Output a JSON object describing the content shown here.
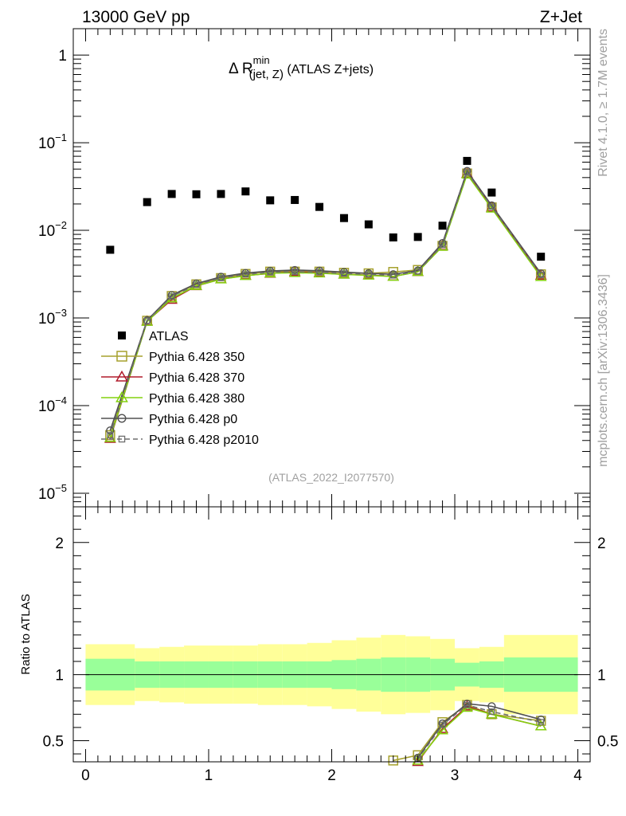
{
  "header": {
    "left": "13000 GeV pp",
    "right": "Z+Jet"
  },
  "side_labels": {
    "rivet": "Rivet 4.1.0, ≥ 1.7M events",
    "mcplots": "mcplots.cern.ch [arXiv:1306.3436]"
  },
  "chart_data": {
    "type": "scatter",
    "title": "Δ R",
    "title_sup": "min",
    "title_sub": "(jet, Z)",
    "title_suffix": " (ATLAS Z+jets)",
    "analysis_id": "(ATLAS_2022_I2077570)",
    "xlim": [
      -0.1,
      4.1
    ],
    "x_ticks": [
      "0",
      "1",
      "2",
      "3",
      "4"
    ],
    "main": {
      "yscale": "log",
      "ylim": [
        7e-06,
        2.0
      ],
      "y_ticks": [
        {
          "base": "10",
          "exp": "−5",
          "value": 1e-05
        },
        {
          "base": "10",
          "exp": "−4",
          "value": 0.0001
        },
        {
          "base": "10",
          "exp": "−3",
          "value": 0.001
        },
        {
          "base": "10",
          "exp": "−2",
          "value": 0.01
        },
        {
          "base": "10",
          "exp": "−1",
          "value": 0.1
        },
        {
          "base": "1",
          "exp": "",
          "value": 1
        }
      ]
    },
    "ratio": {
      "ylabel": "Ratio to ATLAS",
      "ylim": [
        0.34,
        2.27
      ],
      "y_ticks": [
        "0.5",
        "1",
        "2"
      ],
      "y_tick_values": [
        0.5,
        1,
        2
      ]
    },
    "x": [
      0.2,
      0.5,
      0.7,
      0.9,
      1.1,
      1.3,
      1.5,
      1.7,
      1.9,
      2.1,
      2.3,
      2.5,
      2.7,
      2.9,
      3.1,
      3.3,
      3.7
    ],
    "atlas": [
      0.006,
      0.021,
      0.026,
      0.0258,
      0.026,
      0.0278,
      0.022,
      0.0222,
      0.0185,
      0.0138,
      0.0117,
      0.0083,
      0.0084,
      0.0113,
      0.062,
      0.027,
      0.005
    ],
    "band_edges": [
      0,
      0.4,
      0.6,
      0.8,
      1.0,
      1.2,
      1.4,
      1.6,
      1.8,
      2.0,
      2.2,
      2.4,
      2.6,
      2.8,
      3.0,
      3.2,
      3.4,
      4.0
    ],
    "band_inner": [
      0.12,
      0.1,
      0.1,
      0.1,
      0.1,
      0.1,
      0.1,
      0.1,
      0.1,
      0.11,
      0.12,
      0.13,
      0.13,
      0.12,
      0.09,
      0.1,
      0.13
    ],
    "band_outer": [
      0.11,
      0.1,
      0.11,
      0.12,
      0.12,
      0.12,
      0.13,
      0.13,
      0.14,
      0.15,
      0.16,
      0.17,
      0.16,
      0.15,
      0.11,
      0.11,
      0.17
    ],
    "series": [
      {
        "name": "Pythia 6.428 350",
        "color": "#a6a12d",
        "marker": "square-open",
        "dash": "",
        "values": [
          4.6e-05,
          0.00093,
          0.00178,
          0.00242,
          0.00285,
          0.00318,
          0.00338,
          0.00338,
          0.00338,
          0.00328,
          0.00323,
          0.00335,
          0.00353,
          0.00665,
          0.0445,
          0.0183,
          0.00315
        ],
        "ratio": [
          null,
          null,
          null,
          null,
          null,
          null,
          null,
          null,
          null,
          null,
          null,
          0.35,
          0.39,
          0.64,
          0.77,
          0.7,
          0.65
        ]
      },
      {
        "name": "Pythia 6.428 370",
        "color": "#b01c2c",
        "marker": "triangle-open",
        "dash": "",
        "values": [
          4.2e-05,
          0.00092,
          0.00162,
          0.00232,
          0.00278,
          0.00305,
          0.00322,
          0.00336,
          0.00328,
          0.00314,
          0.00309,
          0.00298,
          0.00336,
          0.00665,
          0.0445,
          0.0183,
          0.00305
        ],
        "ratio": [
          null,
          null,
          null,
          null,
          null,
          null,
          null,
          null,
          null,
          null,
          null,
          null,
          0.34,
          0.59,
          0.76,
          0.7,
          0.61
        ]
      },
      {
        "name": "Pythia 6.428 380",
        "color": "#84d20e",
        "marker": "triangle-open",
        "dash": "",
        "values": [
          4.3e-05,
          0.00091,
          0.00168,
          0.00233,
          0.00277,
          0.00303,
          0.00324,
          0.00328,
          0.00324,
          0.00314,
          0.00306,
          0.00297,
          0.00337,
          0.00655,
          0.0435,
          0.0178,
          0.00295
        ],
        "ratio": [
          null,
          null,
          null,
          null,
          null,
          null,
          null,
          null,
          null,
          null,
          null,
          null,
          0.35,
          0.58,
          0.75,
          0.7,
          0.61
        ]
      },
      {
        "name": "Pythia 6.428 p0",
        "color": "#505050",
        "marker": "circle-open",
        "dash": "",
        "values": [
          5.2e-05,
          0.00094,
          0.00182,
          0.00247,
          0.00295,
          0.00325,
          0.00344,
          0.00352,
          0.00346,
          0.00334,
          0.00323,
          0.00315,
          0.00348,
          0.00715,
          0.0475,
          0.0192,
          0.00322
        ],
        "ratio": [
          null,
          null,
          null,
          null,
          null,
          null,
          null,
          null,
          null,
          null,
          null,
          null,
          0.37,
          0.63,
          0.78,
          0.76,
          0.66
        ]
      },
      {
        "name": "Pythia 6.428 p2010",
        "color": "#6e6e6e",
        "marker": "square-small",
        "dash": "6,4",
        "values": [
          4.6e-05,
          0.00093,
          0.00176,
          0.0024,
          0.00286,
          0.00315,
          0.00333,
          0.00336,
          0.00333,
          0.00322,
          0.00315,
          0.00306,
          0.0034,
          0.0068,
          0.0458,
          0.0186,
          0.0031
        ],
        "ratio": [
          null,
          null,
          null,
          null,
          null,
          null,
          null,
          null,
          null,
          null,
          null,
          null,
          0.36,
          0.62,
          0.77,
          0.72,
          0.64
        ]
      }
    ],
    "legend": {
      "position": "lower-left",
      "entries": [
        "ATLAS",
        "Pythia 6.428 350",
        "Pythia 6.428 370",
        "Pythia 6.428 380",
        "Pythia 6.428 p0",
        "Pythia 6.428 p2010"
      ]
    },
    "colors": {
      "band_inner": "#99ff99",
      "band_outer": "#ffff99",
      "data": "#000000",
      "analysis_id": "#a0a0a0",
      "side_label": "#a0a0a0"
    }
  }
}
